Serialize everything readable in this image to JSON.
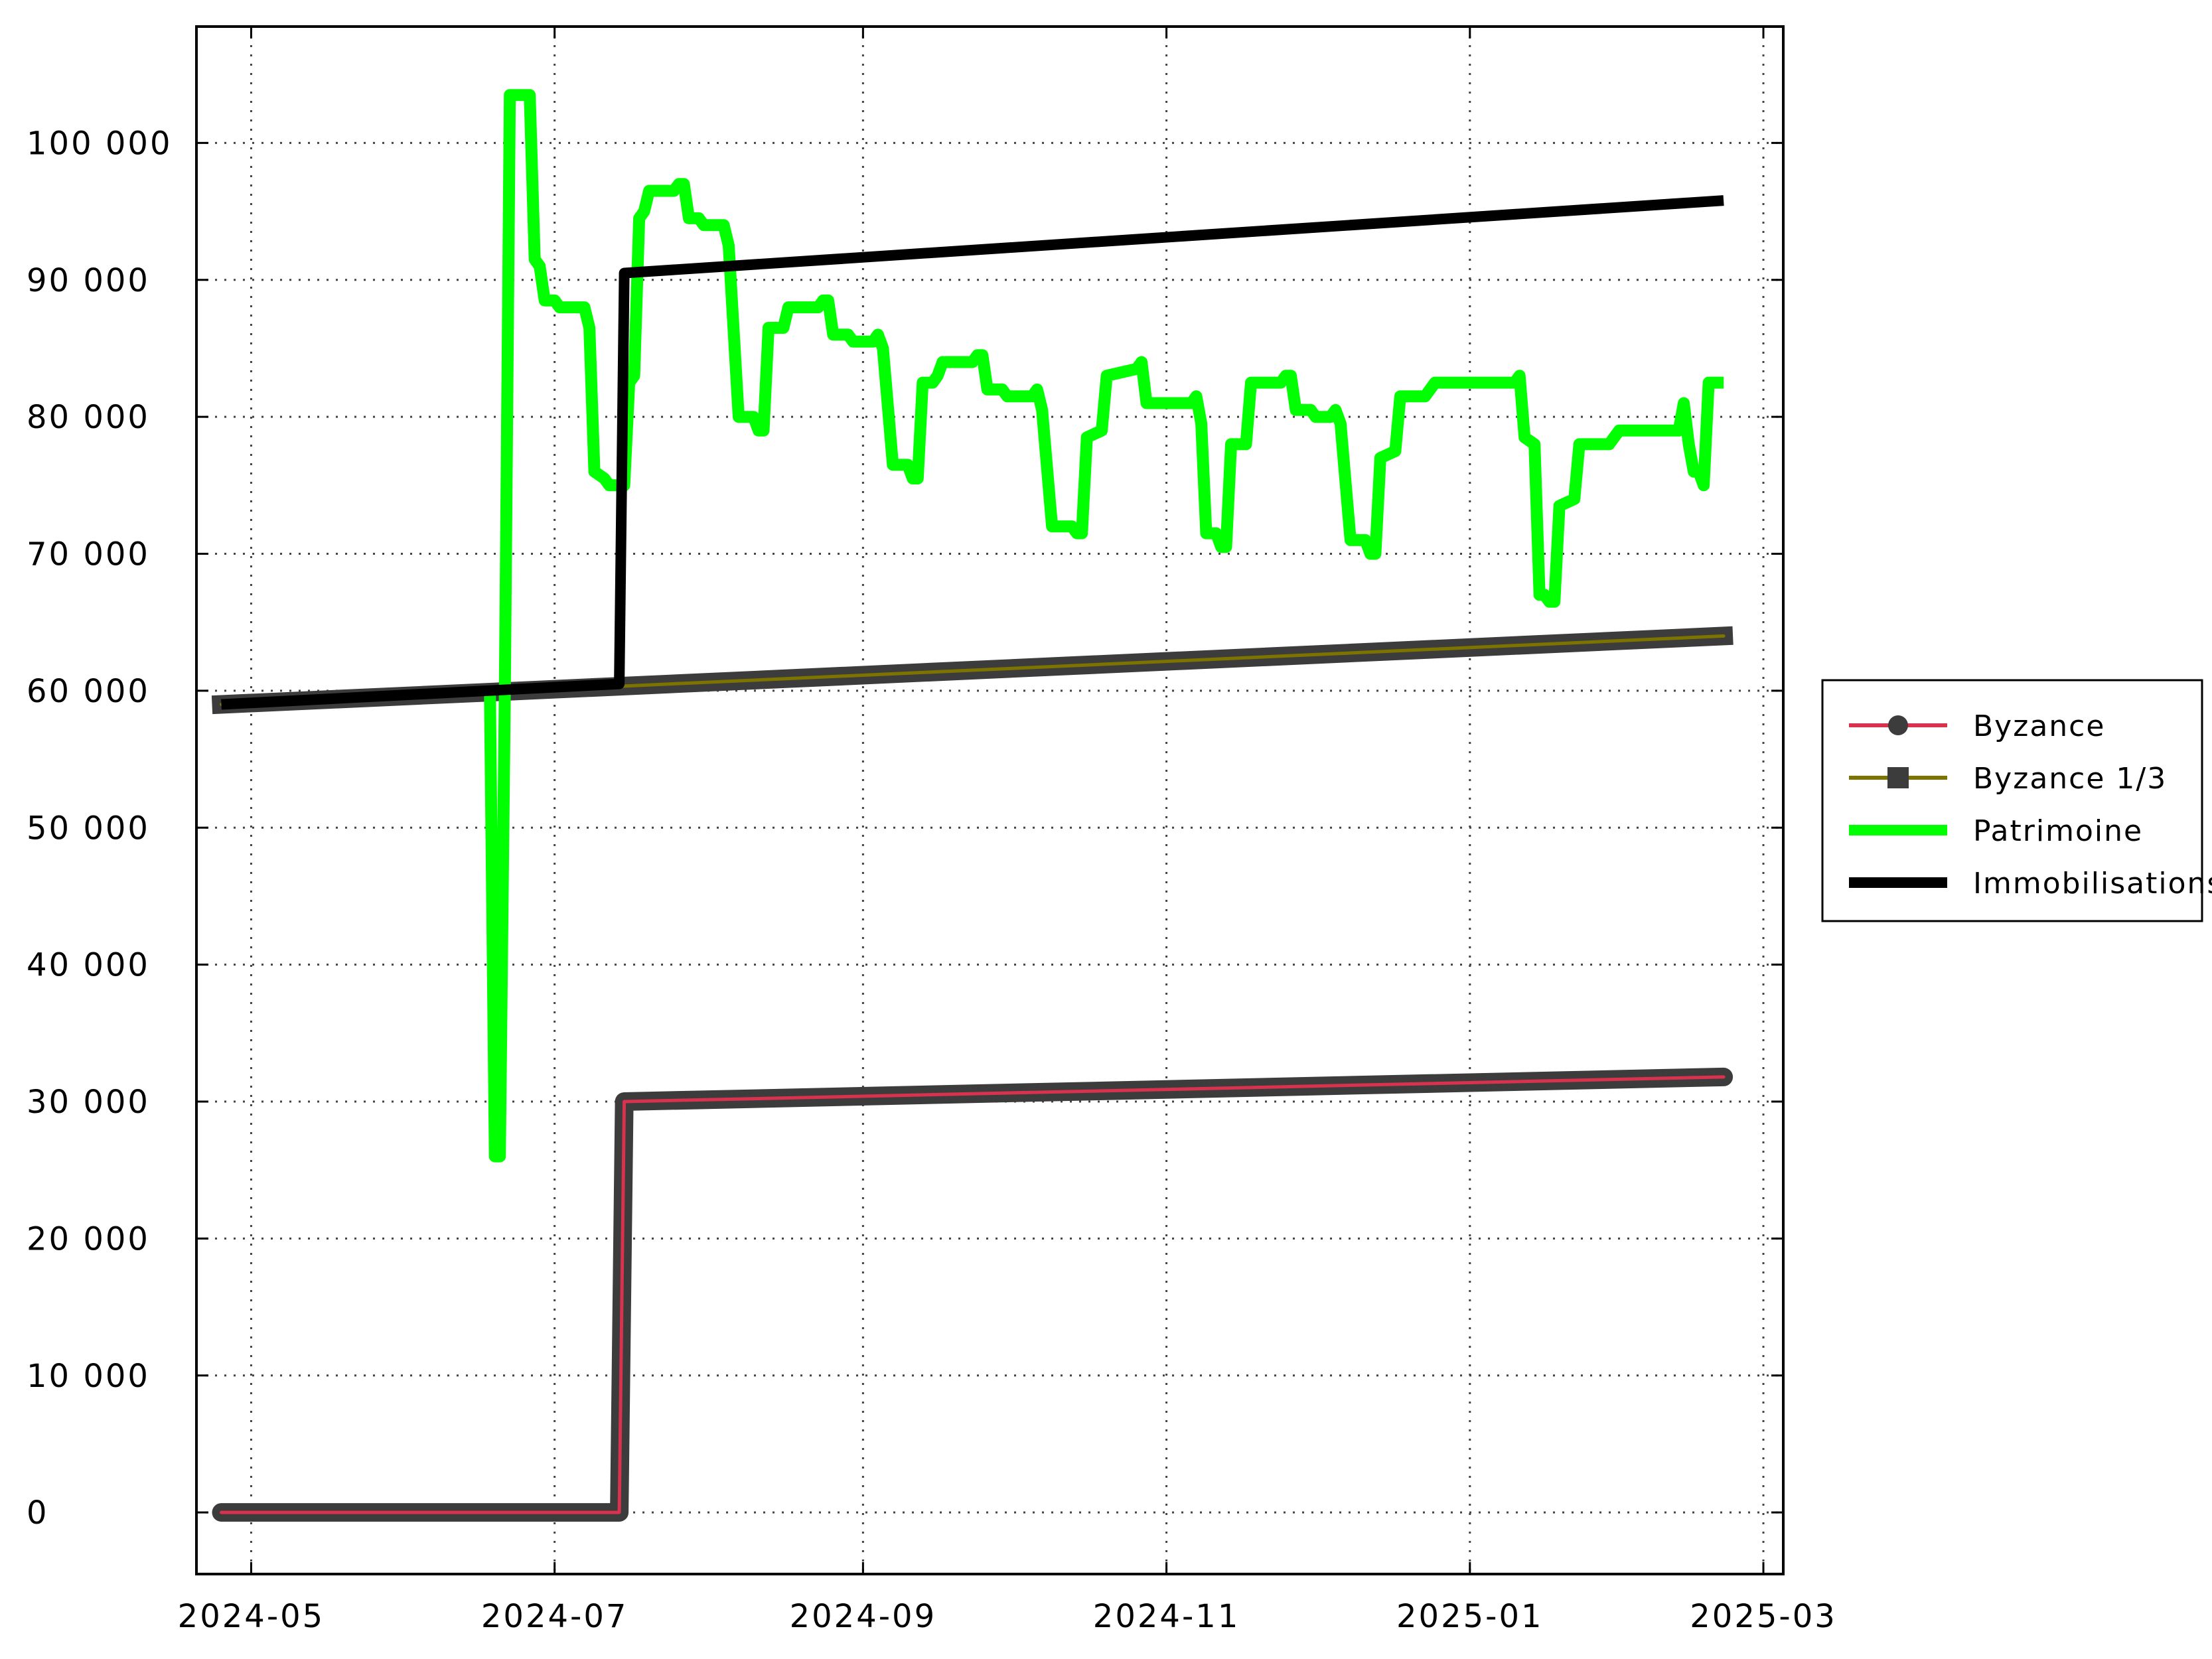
{
  "chart_data": {
    "type": "line",
    "title": "",
    "xlabel": "",
    "ylabel": "",
    "xlim": [
      "2024-04-20",
      "2025-03-05"
    ],
    "ylim": [
      -4500,
      108500
    ],
    "x_ticks": [
      "2024-05",
      "2024-07",
      "2024-09",
      "2024-11",
      "2025-01",
      "2025-03"
    ],
    "y_ticks": [
      {
        "value": 0,
        "label": "0"
      },
      {
        "value": 10000,
        "label": "10 000"
      },
      {
        "value": 20000,
        "label": "20 000"
      },
      {
        "value": 30000,
        "label": "30 000"
      },
      {
        "value": 40000,
        "label": "40 000"
      },
      {
        "value": 50000,
        "label": "50 000"
      },
      {
        "value": 60000,
        "label": "60 000"
      },
      {
        "value": 70000,
        "label": "70 000"
      },
      {
        "value": 80000,
        "label": "80 000"
      },
      {
        "value": 90000,
        "label": "90 000"
      },
      {
        "value": 100000,
        "label": "100 000"
      }
    ],
    "grid": true,
    "legend_position": "right",
    "series": [
      {
        "name": "Byzance",
        "color": "#d8324f",
        "halo_color": "#3c3c3c",
        "marker": "circle",
        "points": [
          [
            "2024-04-25",
            0
          ],
          [
            "2024-07-14",
            0
          ],
          [
            "2024-07-15",
            30000
          ],
          [
            "2025-02-21",
            31800
          ]
        ]
      },
      {
        "name": "Byzance 1/3",
        "color": "#7d7400",
        "halo_color": "#3c3c3c",
        "marker": "square",
        "points": [
          [
            "2024-04-25",
            59000
          ],
          [
            "2025-02-21",
            64000
          ]
        ]
      },
      {
        "name": "Patrimoine",
        "color": "#00ff00",
        "points": [
          [
            "2024-06-18",
            60000
          ],
          [
            "2024-06-19",
            26000
          ],
          [
            "2024-06-20",
            26000
          ],
          [
            "2024-06-21",
            60000
          ],
          [
            "2024-06-22",
            103500
          ],
          [
            "2024-06-26",
            103500
          ],
          [
            "2024-06-27",
            91500
          ],
          [
            "2024-06-28",
            91000
          ],
          [
            "2024-06-29",
            88500
          ],
          [
            "2024-07-01",
            88500
          ],
          [
            "2024-07-02",
            88000
          ],
          [
            "2024-07-07",
            88000
          ],
          [
            "2024-07-08",
            86500
          ],
          [
            "2024-07-09",
            76000
          ],
          [
            "2024-07-11",
            75500
          ],
          [
            "2024-07-12",
            75000
          ],
          [
            "2024-07-15",
            75000
          ],
          [
            "2024-07-16",
            82500
          ],
          [
            "2024-07-17",
            83000
          ],
          [
            "2024-07-18",
            94500
          ],
          [
            "2024-07-19",
            95000
          ],
          [
            "2024-07-20",
            96500
          ],
          [
            "2024-07-25",
            96500
          ],
          [
            "2024-07-26",
            97000
          ],
          [
            "2024-07-27",
            97000
          ],
          [
            "2024-07-28",
            94500
          ],
          [
            "2024-07-30",
            94500
          ],
          [
            "2024-07-31",
            94000
          ],
          [
            "2024-08-04",
            94000
          ],
          [
            "2024-08-05",
            92500
          ],
          [
            "2024-08-07",
            80000
          ],
          [
            "2024-08-10",
            80000
          ],
          [
            "2024-08-11",
            79000
          ],
          [
            "2024-08-12",
            79000
          ],
          [
            "2024-08-13",
            86500
          ],
          [
            "2024-08-16",
            86500
          ],
          [
            "2024-08-17",
            88000
          ],
          [
            "2024-08-23",
            88000
          ],
          [
            "2024-08-24",
            88500
          ],
          [
            "2024-08-25",
            88500
          ],
          [
            "2024-08-26",
            86000
          ],
          [
            "2024-08-29",
            86000
          ],
          [
            "2024-08-30",
            85500
          ],
          [
            "2024-09-03",
            85500
          ],
          [
            "2024-09-04",
            86000
          ],
          [
            "2024-09-05",
            85000
          ],
          [
            "2024-09-07",
            76500
          ],
          [
            "2024-09-10",
            76500
          ],
          [
            "2024-09-11",
            75500
          ],
          [
            "2024-09-12",
            75500
          ],
          [
            "2024-09-13",
            82500
          ],
          [
            "2024-09-15",
            82500
          ],
          [
            "2024-09-16",
            83000
          ],
          [
            "2024-09-17",
            84000
          ],
          [
            "2024-09-23",
            84000
          ],
          [
            "2024-09-24",
            84500
          ],
          [
            "2024-09-25",
            84500
          ],
          [
            "2024-09-26",
            82000
          ],
          [
            "2024-09-29",
            82000
          ],
          [
            "2024-09-30",
            81500
          ],
          [
            "2024-10-05",
            81500
          ],
          [
            "2024-10-06",
            82000
          ],
          [
            "2024-10-07",
            80500
          ],
          [
            "2024-10-09",
            72000
          ],
          [
            "2024-10-13",
            72000
          ],
          [
            "2024-10-14",
            71500
          ],
          [
            "2024-10-15",
            71500
          ],
          [
            "2024-10-16",
            78500
          ],
          [
            "2024-10-19",
            79000
          ],
          [
            "2024-10-20",
            83000
          ],
          [
            "2024-10-26",
            83500
          ],
          [
            "2024-10-27",
            84000
          ],
          [
            "2024-10-28",
            81000
          ],
          [
            "2024-10-31",
            81000
          ],
          [
            "2024-11-01",
            81000
          ],
          [
            "2024-11-06",
            81000
          ],
          [
            "2024-11-07",
            81500
          ],
          [
            "2024-11-08",
            79500
          ],
          [
            "2024-11-09",
            71500
          ],
          [
            "2024-11-11",
            71500
          ],
          [
            "2024-11-12",
            70500
          ],
          [
            "2024-11-13",
            70500
          ],
          [
            "2024-11-14",
            78000
          ],
          [
            "2024-11-17",
            78000
          ],
          [
            "2024-11-18",
            82500
          ],
          [
            "2024-11-24",
            82500
          ],
          [
            "2024-11-25",
            83000
          ],
          [
            "2024-11-26",
            83000
          ],
          [
            "2024-11-27",
            80500
          ],
          [
            "2024-11-30",
            80500
          ],
          [
            "2024-12-01",
            80000
          ],
          [
            "2024-12-04",
            80000
          ],
          [
            "2024-12-05",
            80500
          ],
          [
            "2024-12-06",
            79500
          ],
          [
            "2024-12-08",
            71000
          ],
          [
            "2024-12-11",
            71000
          ],
          [
            "2024-12-12",
            70000
          ],
          [
            "2024-12-13",
            70000
          ],
          [
            "2024-12-14",
            77000
          ],
          [
            "2024-12-17",
            77500
          ],
          [
            "2024-12-18",
            81500
          ],
          [
            "2024-12-23",
            81500
          ],
          [
            "2024-12-24",
            82000
          ],
          [
            "2024-12-25",
            82500
          ],
          [
            "2025-01-10",
            82500
          ],
          [
            "2025-01-11",
            83000
          ],
          [
            "2025-01-12",
            78500
          ],
          [
            "2025-01-14",
            78000
          ],
          [
            "2025-01-15",
            67000
          ],
          [
            "2025-01-16",
            67000
          ],
          [
            "2025-01-17",
            66500
          ],
          [
            "2025-01-18",
            66500
          ],
          [
            "2025-01-19",
            73500
          ],
          [
            "2025-01-22",
            74000
          ],
          [
            "2025-01-23",
            78000
          ],
          [
            "2025-01-29",
            78000
          ],
          [
            "2025-01-30",
            78500
          ],
          [
            "2025-01-31",
            79000
          ],
          [
            "2025-02-12",
            79000
          ],
          [
            "2025-02-13",
            81000
          ],
          [
            "2025-02-14",
            78000
          ],
          [
            "2025-02-15",
            76000
          ],
          [
            "2025-02-16",
            76000
          ],
          [
            "2025-02-17",
            75000
          ],
          [
            "2025-02-18",
            82500
          ],
          [
            "2025-02-21",
            82500
          ]
        ]
      },
      {
        "name": "Immobilisations",
        "color": "#000000",
        "points": [
          [
            "2024-04-25",
            59000
          ],
          [
            "2024-07-14",
            60500
          ],
          [
            "2024-07-15",
            90500
          ],
          [
            "2025-02-21",
            95800
          ]
        ]
      }
    ]
  }
}
